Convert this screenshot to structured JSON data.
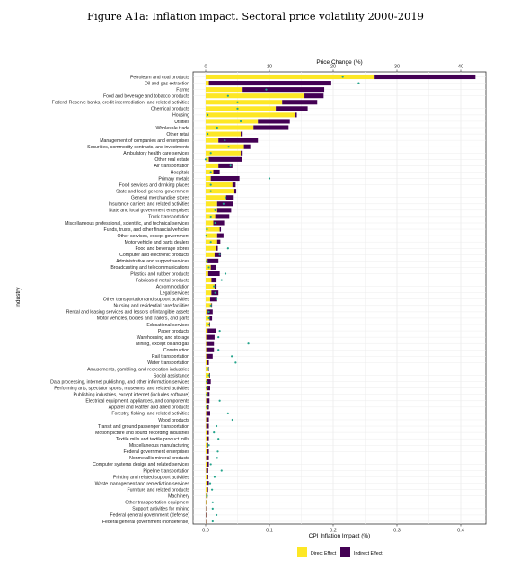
{
  "figure_title": "Figure A1a: Inflation impact. Sectoral price volatility 2000-2019",
  "chart_data": {
    "type": "bar",
    "orientation": "horizontal",
    "stacked": true,
    "title": "Figure A1a: Inflation impact. Sectoral price volatility 2000-2019",
    "xlabel_bottom": "CPI Inflation Impact (%)",
    "xlabel_top": "Price Change (%)",
    "ylabel": "Industry",
    "xlim_bottom": [
      -0.01,
      0.425
    ],
    "xticks_bottom": [
      0.0,
      0.1,
      0.2,
      0.3,
      0.4
    ],
    "xtick_labels_bottom": [
      "0.0",
      "0.1",
      "0.2",
      "0.3",
      "0.4"
    ],
    "xticks_top": [
      0,
      10,
      20,
      30,
      40
    ],
    "xtick_labels_top": [
      "0",
      "10",
      "20",
      "30",
      "40"
    ],
    "grid": true,
    "legend_position": "bottom",
    "series": [
      {
        "name": "Direct Effect",
        "color": "#FDE725"
      },
      {
        "name": "Indirect Effect",
        "color": "#440154"
      }
    ],
    "point_marker": {
      "color": "#21A38A",
      "axis": "top",
      "unit": "Price Change (%)"
    },
    "categories": [
      "Petroleum and coal products",
      "Oil and gas extraction",
      "Farms",
      "Food and beverage and tobacco products",
      "Federal Reserve banks, credit intermediation, and related activities",
      "Chemical products",
      "Housing",
      "Utilities",
      "Wholesale trade",
      "Other retail",
      "Management of companies and enterprises",
      "Securities, commodity contracts, and investments",
      "Ambulatory health care services",
      "Other real estate",
      "Air transportation",
      "Hospitals",
      "Primary metals",
      "Food services and drinking places",
      "State and local general government",
      "General merchandise stores",
      "Insurance carriers and related activities",
      "State and local government enterprises",
      "Truck transportation",
      "Miscellaneous professional, scientific, and technical services",
      "Funds, trusts, and other financial vehicles",
      "Other services, except government",
      "Motor vehicle and parts dealers",
      "Food and beverage stores",
      "Computer and electronic products",
      "Administrative and support services",
      "Broadcasting and telecommunications",
      "Plastics and rubber products",
      "Fabricated metal products",
      "Accommodation",
      "Legal services",
      "Other transportation and support activities",
      "Nursing and residential care facilities",
      "Rental and leasing services and lessors of intangible assets",
      "Motor vehicles, bodies and trailers, and parts",
      "Educational services",
      "Paper products",
      "Warehousing and storage",
      "Mining, except oil and gas",
      "Construction",
      "Rail transportation",
      "Water transportation",
      "Amusements, gambling, and recreation industries",
      "Social assistance",
      "Data processing, internet publishing, and other information services",
      "Performing arts, spectator sports, museums, and related activities",
      "Publishing industries, except internet (includes software)",
      "Electrical equipment, appliances, and components",
      "Apparel and leather and allied products",
      "Forestry, fishing, and related activities",
      "Wood products",
      "Transit and ground passenger transportation",
      "Motion picture and sound recording industries",
      "Textile mills and textile product mills",
      "Miscellaneous manufacturing",
      "Federal government enterprises",
      "Nonmetallic mineral products",
      "Computer systems design and related services",
      "Pipeline transportation",
      "Printing and related support activities",
      "Waste management and remediation services",
      "Furniture and related products",
      "Machinery",
      "Other transportation equipment",
      "Support activities for mining",
      "Federal general government (defense)",
      "Federal general government (nondefense)"
    ],
    "direct": [
      0.265,
      0.005,
      0.058,
      0.155,
      0.12,
      0.11,
      0.14,
      0.082,
      0.075,
      0.055,
      0.02,
      0.06,
      0.055,
      0.005,
      0.02,
      0.012,
      0.008,
      0.042,
      0.045,
      0.032,
      0.018,
      0.018,
      0.015,
      0.012,
      0.022,
      0.018,
      0.018,
      0.016,
      0.014,
      0.003,
      0.008,
      0.004,
      0.009,
      0.014,
      0.009,
      0.007,
      0.009,
      0.003,
      0.006,
      0.006,
      0.003,
      0.001,
      0.001,
      0.001,
      0.001,
      0.002,
      0.004,
      0.006,
      0.002,
      0.002,
      0.003,
      0.001,
      0.002,
      0.001,
      0.001,
      0.001,
      0.002,
      0.002,
      0.003,
      0.002,
      0.001,
      0.002,
      0.001,
      0.002,
      0.002,
      0.003,
      0.001,
      0.001,
      0.0005,
      0.0005,
      0.0005
    ],
    "indirect": [
      0.158,
      0.192,
      0.128,
      0.03,
      0.055,
      0.05,
      0.003,
      0.05,
      0.055,
      0.003,
      0.062,
      0.01,
      0.003,
      0.052,
      0.022,
      0.01,
      0.045,
      0.005,
      0.003,
      0.012,
      0.025,
      0.022,
      0.022,
      0.017,
      0.002,
      0.01,
      0.005,
      0.003,
      0.01,
      0.017,
      0.008,
      0.018,
      0.008,
      0.003,
      0.011,
      0.011,
      0.001,
      0.008,
      0.004,
      0.001,
      0.013,
      0.013,
      0.012,
      0.012,
      0.01,
      0.003,
      0.001,
      0.001,
      0.006,
      0.005,
      0.003,
      0.005,
      0.003,
      0.006,
      0.004,
      0.004,
      0.003,
      0.003,
      0.001,
      0.003,
      0.004,
      0.003,
      0.003,
      0.002,
      0.003,
      0.001,
      0.002,
      0.001,
      0.0005,
      0.0008,
      0.0005
    ],
    "price_change": [
      21.5,
      24,
      9.5,
      3.5,
      5,
      5,
      0.3,
      5.5,
      1.8,
      0.3,
      3,
      3.6,
      0.8,
      0,
      3.9,
      0.8,
      10,
      0.8,
      0.8,
      3.1,
      2.8,
      1.5,
      0.8,
      1.5,
      0.2,
      0.1,
      0.8,
      3.5,
      2.2,
      0.2,
      0.5,
      3.1,
      2.5,
      1.3,
      1.5,
      1.7,
      0.8,
      0.5,
      0.5,
      0.5,
      2.2,
      2,
      6.7,
      2,
      4.1,
      4.7,
      0.4,
      0.5,
      0.2,
      0.2,
      0.2,
      2.2,
      0.2,
      3.5,
      4.2,
      1.7,
      1.3,
      2,
      0.5,
      1.9,
      1.8,
      0.8,
      2.5,
      1.4,
      0.7,
      1,
      0.2,
      1.1,
      1.1,
      1.7,
      1.1
    ]
  },
  "legend": {
    "direct_label": "Direct Effect",
    "indirect_label": "Indirect Effect"
  }
}
